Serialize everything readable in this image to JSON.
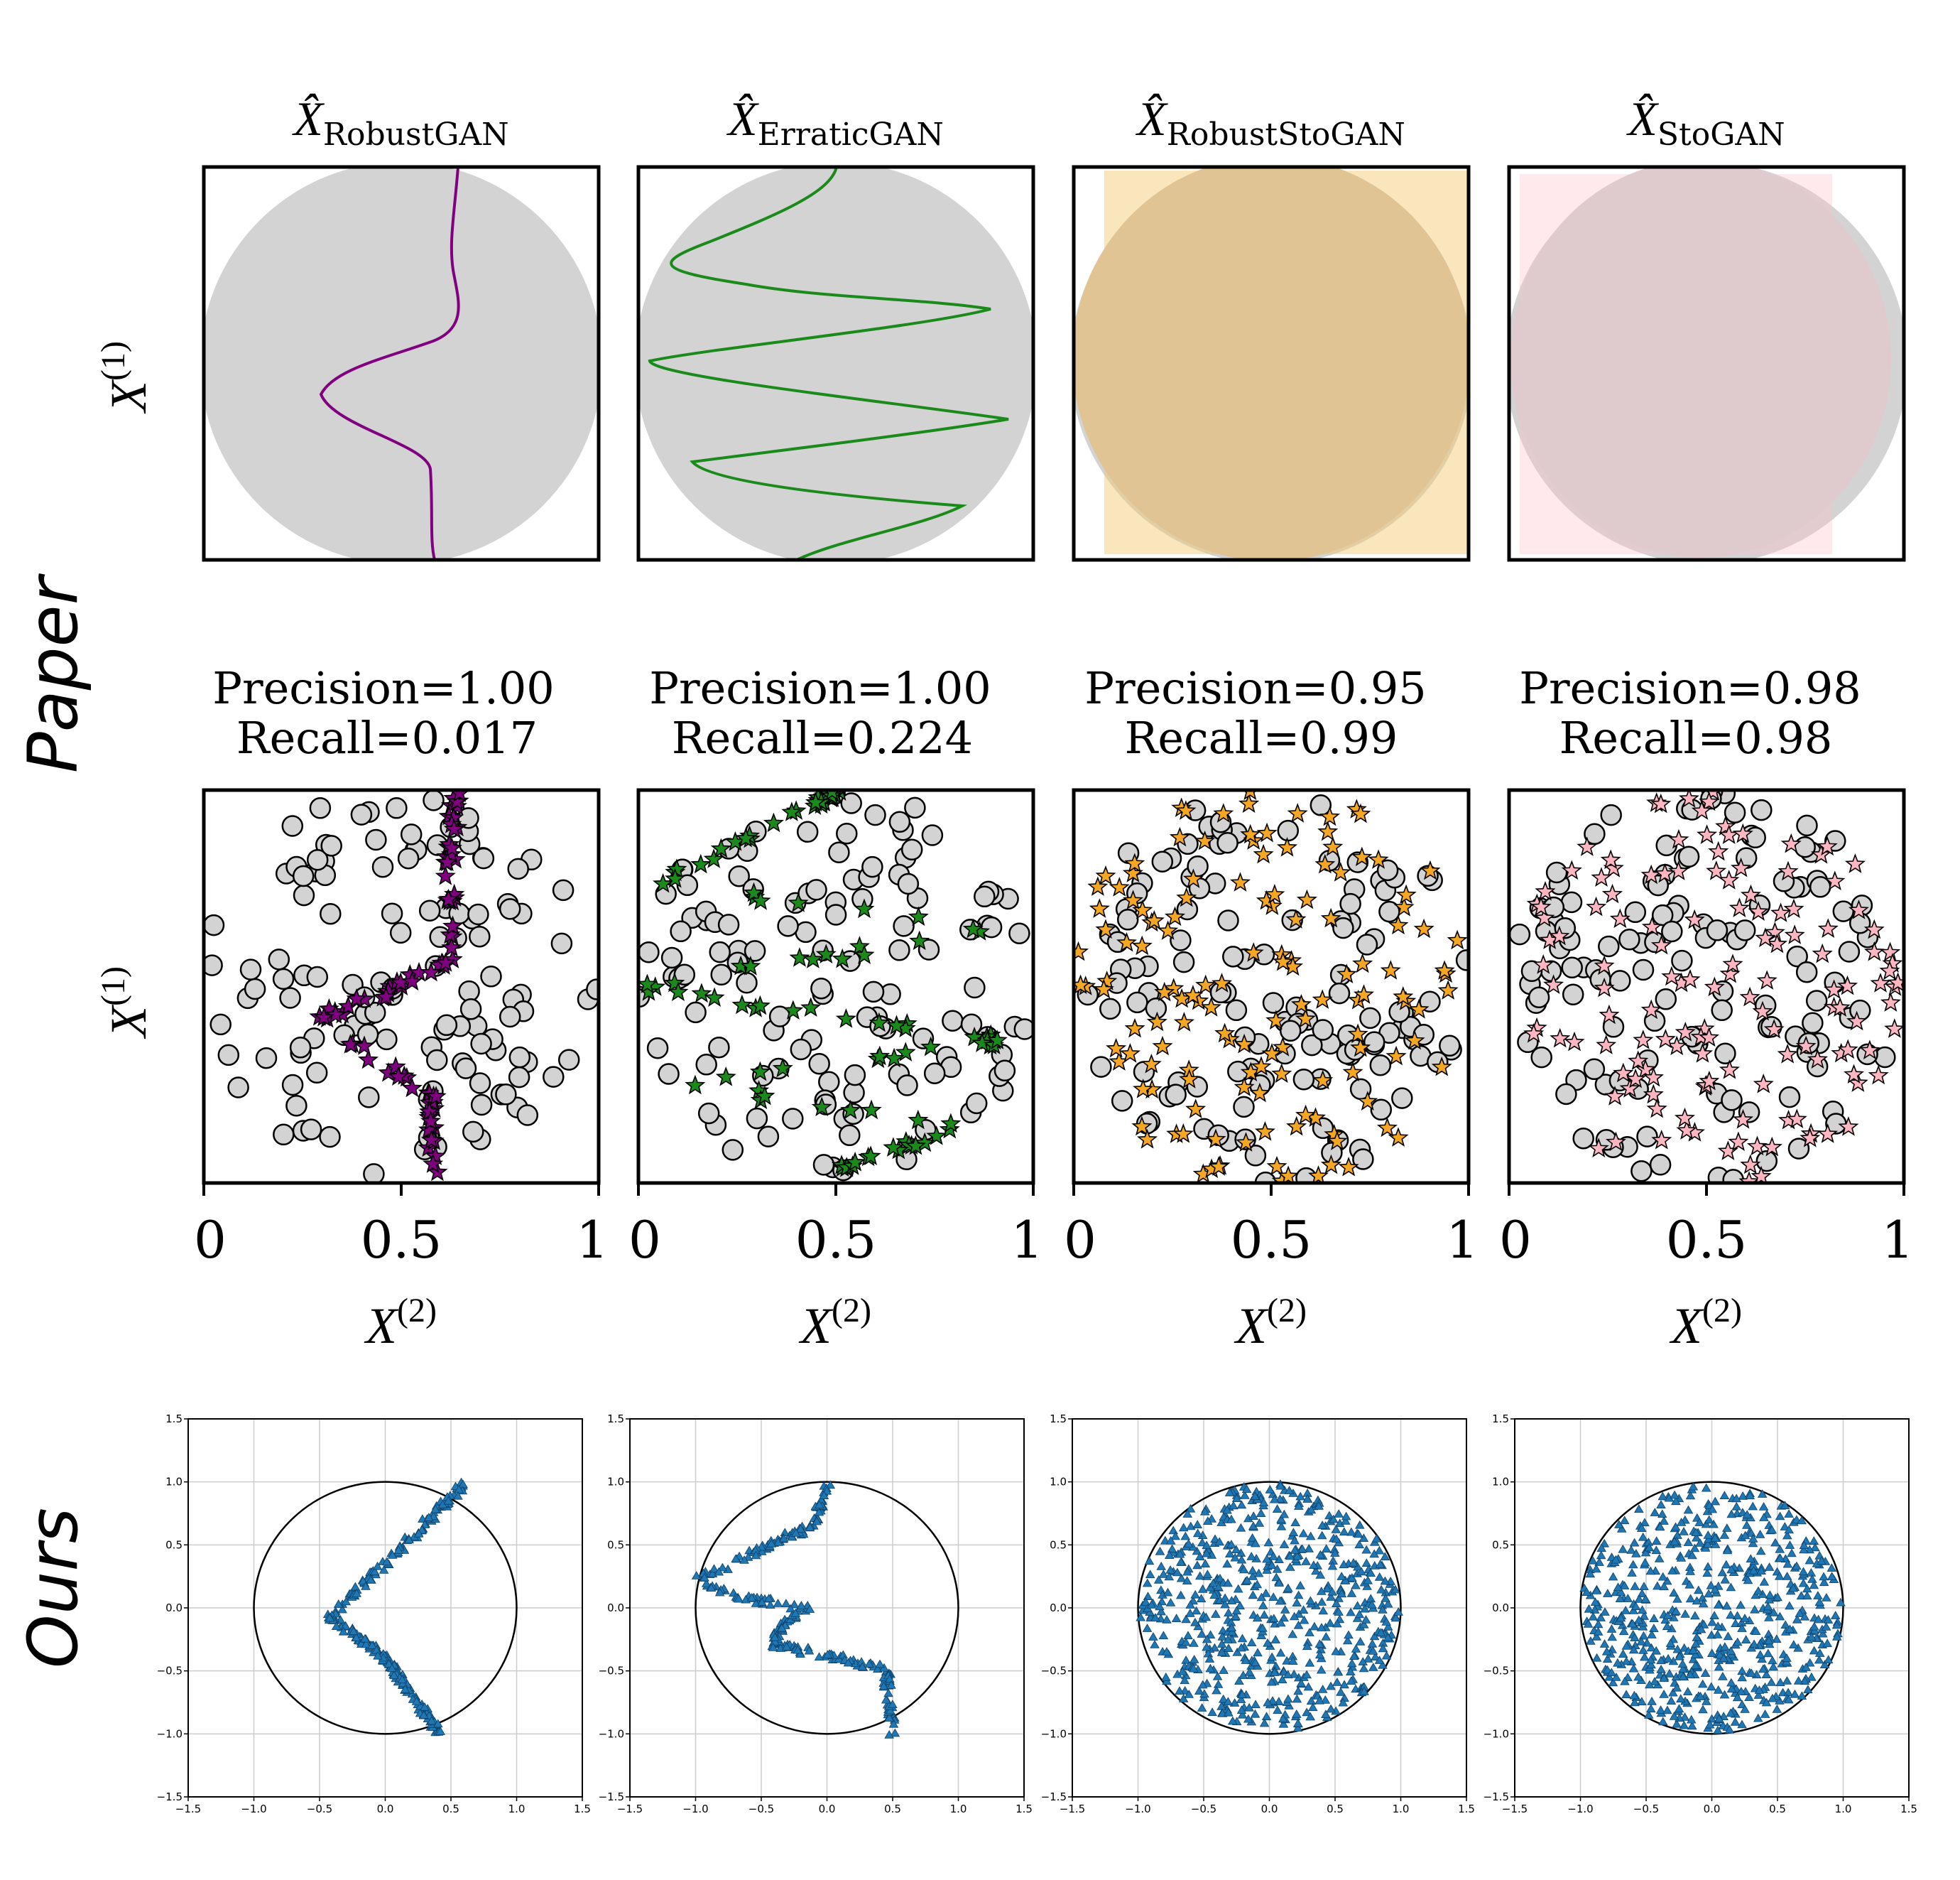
{
  "row_labels": {
    "paper": "Paper",
    "ours": "Ours"
  },
  "colors": {
    "disk": "#d3d3d3",
    "robustgan": "#800080",
    "erraticgan": "#1a8a1a",
    "robuststogan": "#f5a623",
    "stogan": "#ffb6c1",
    "ours_marker": "#1f77b4",
    "grid": "#cccccc"
  },
  "paper_row1": {
    "ylabel_var": "X",
    "ylabel_sup": "(1)",
    "panels": [
      {
        "title_var": "X̂",
        "title_sub": "RobustGAN"
      },
      {
        "title_var": "X̂",
        "title_sub": "ErraticGAN"
      },
      {
        "title_var": "X̂",
        "title_sub": "RobustStoGAN"
      },
      {
        "title_var": "X̂",
        "title_sub": "StoGAN"
      }
    ]
  },
  "paper_row2": {
    "ylabel_var": "X",
    "ylabel_sup": "(1)",
    "xlabel_var": "X",
    "xlabel_sup": "(2)",
    "xticks": [
      "0",
      "0.5",
      "1"
    ],
    "panels": [
      {
        "precision": "Precision=1.00",
        "recall": "Recall=0.017"
      },
      {
        "precision": "Precision=1.00",
        "recall": "Recall=0.224"
      },
      {
        "precision": "Precision=0.95",
        "recall": "Recall=0.99"
      },
      {
        "precision": "Precision=0.98",
        "recall": "Recall=0.98"
      }
    ]
  },
  "ours_row": {
    "ticks": [
      "−1.5",
      "−1.0",
      "−0.5",
      "0.0",
      "0.5",
      "1.0",
      "1.5"
    ],
    "yticks": [
      "1.5",
      "1.0",
      "0.5",
      "0.0",
      "−0.5",
      "−1.0",
      "−1.5"
    ]
  },
  "chart_data": [
    {
      "type": "line",
      "title": "X̂ RobustGAN",
      "ylabel": "X(1)",
      "series": [
        {
          "name": "RobustGAN",
          "x": [
            0.64,
            0.63,
            0.62,
            0.64,
            0.6,
            0.45,
            0.3,
            0.45,
            0.58,
            0.58,
            0.58
          ],
          "y": [
            1.0,
            0.9,
            0.76,
            0.6,
            0.55,
            0.48,
            0.42,
            0.3,
            0.22,
            0.1,
            0.0
          ]
        }
      ]
    },
    {
      "type": "line",
      "title": "X̂ ErraticGAN",
      "ylabel": "X(1)",
      "series": [
        {
          "name": "ErraticGAN",
          "x": [
            0.5,
            0.45,
            0.05,
            0.88,
            0.02,
            0.92,
            0.12,
            0.82,
            0.4
          ],
          "y": [
            1.0,
            0.96,
            0.77,
            0.64,
            0.5,
            0.36,
            0.25,
            0.14,
            0.0
          ]
        }
      ]
    },
    {
      "type": "area",
      "title": "X̂ RobustStoGAN",
      "ylabel": "X(1)"
    },
    {
      "type": "area",
      "title": "X̂ StoGAN",
      "ylabel": "X(1)"
    },
    {
      "type": "scatter",
      "title": "Precision=1.00 Recall=0.017",
      "xlabel": "X(2)",
      "ylabel": "X(1)",
      "xlim": [
        0,
        1
      ],
      "ylim": [
        0,
        1
      ]
    },
    {
      "type": "scatter",
      "title": "Precision=1.00 Recall=0.224",
      "xlabel": "X(2)",
      "ylabel": "X(1)",
      "xlim": [
        0,
        1
      ],
      "ylim": [
        0,
        1
      ]
    },
    {
      "type": "scatter",
      "title": "Precision=0.95 Recall=0.99",
      "xlabel": "X(2)",
      "ylabel": "X(1)",
      "xlim": [
        0,
        1
      ],
      "ylim": [
        0,
        1
      ]
    },
    {
      "type": "scatter",
      "title": "Precision=0.98 Recall=0.98",
      "xlabel": "X(2)",
      "ylabel": "X(1)",
      "xlim": [
        0,
        1
      ],
      "ylim": [
        0,
        1
      ]
    },
    {
      "type": "scatter",
      "xlim": [
        -1.5,
        1.5
      ],
      "ylim": [
        -1.5,
        1.5
      ],
      "grid": true,
      "series": [
        {
          "path_x": [
            0.6,
            0.1,
            -0.42,
            -0.05,
            0.1,
            0.42
          ],
          "path_y": [
            0.98,
            0.45,
            -0.08,
            -0.35,
            -0.55,
            -1.0
          ]
        }
      ]
    },
    {
      "type": "scatter",
      "xlim": [
        -1.5,
        1.5
      ],
      "ylim": [
        -1.5,
        1.5
      ],
      "grid": true,
      "series": [
        {
          "path_x": [
            0.0,
            -0.1,
            -0.45,
            -0.98,
            -0.65,
            -0.15,
            -0.35,
            -0.4,
            0.0,
            0.45,
            0.5
          ],
          "path_y": [
            0.98,
            0.65,
            0.5,
            0.22,
            0.07,
            0.0,
            -0.15,
            -0.3,
            -0.38,
            -0.5,
            -1.0
          ]
        }
      ]
    },
    {
      "type": "scatter",
      "xlim": [
        -1.5,
        1.5
      ],
      "ylim": [
        -1.5,
        1.5
      ],
      "grid": true
    },
    {
      "type": "scatter",
      "xlim": [
        -1.5,
        1.5
      ],
      "ylim": [
        -1.5,
        1.5
      ],
      "grid": true
    }
  ]
}
